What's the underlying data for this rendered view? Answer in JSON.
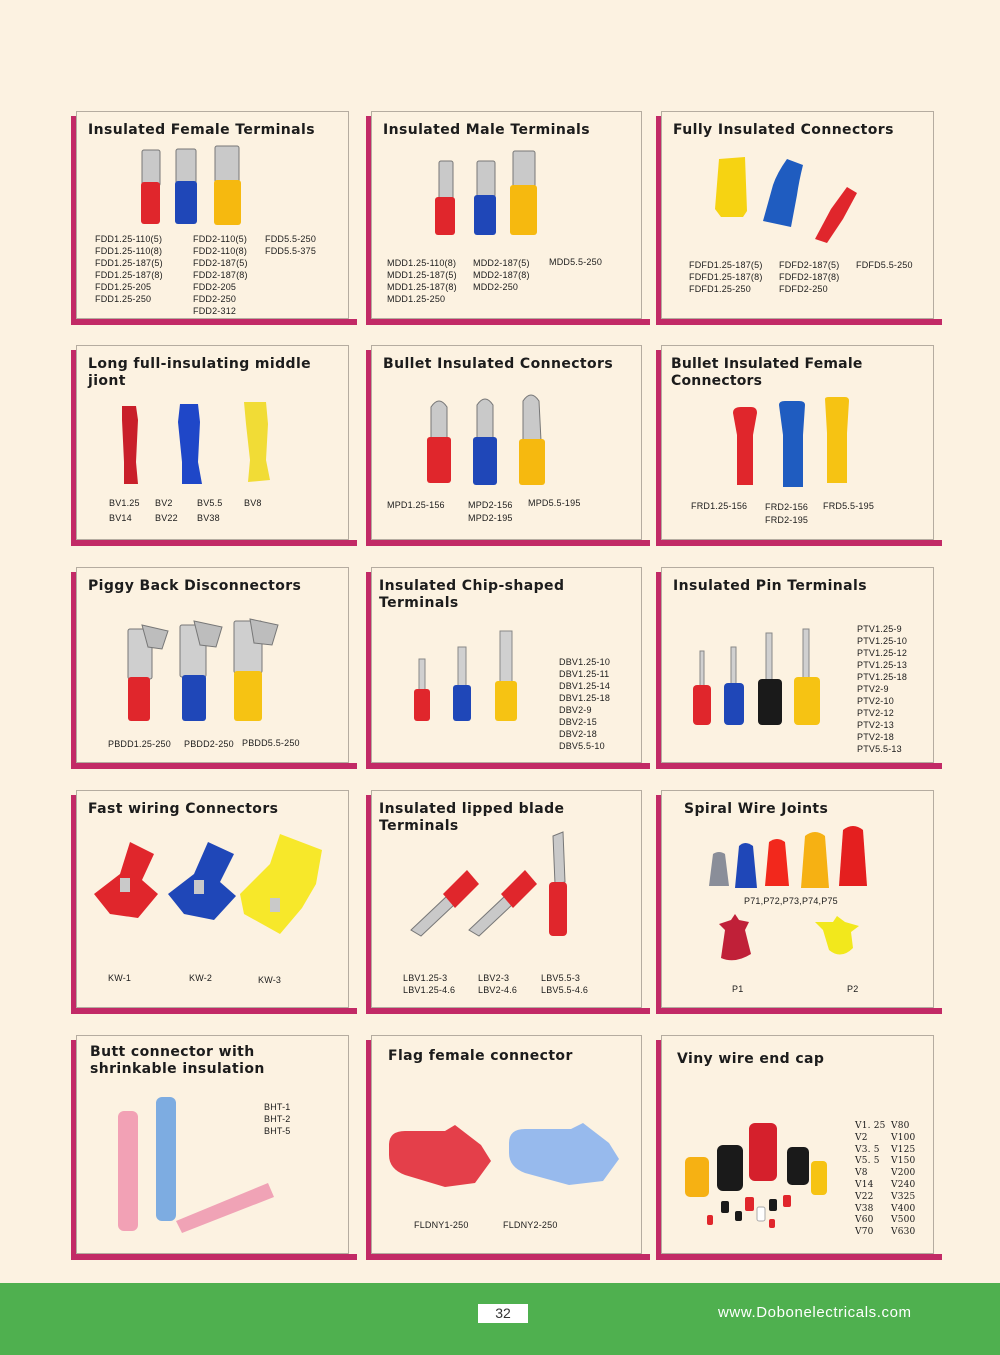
{
  "cards": [
    {
      "title": "Insulated  Female Terminals",
      "cols": [
        "FDD1.25-110(5)\nFDD1.25-110(8)\nFDD1.25-187(5)\nFDD1.25-187(8)\nFDD1.25-205\nFDD1.25-250",
        "FDD2-110(5)\nFDD2-110(8)\nFDD2-187(5)\nFDD2-187(8)\nFDD2-205\nFDD2-250\nFDD2-312",
        "FDD5.5-250\nFDD5.5-375"
      ]
    },
    {
      "title": "Insulated  Male Terminals",
      "cols": [
        "MDD1.25-110(8)\nMDD1.25-187(5)\nMDD1.25-187(8)\nMDD1.25-250",
        "MDD2-187(5)\nMDD2-187(8)\nMDD2-250",
        "MDD5.5-250"
      ]
    },
    {
      "title": "Fully Insulated Connectors",
      "cols": [
        "FDFD1.25-187(5)\nFDFD1.25-187(8)\nFDFD1.25-250",
        "FDFD2-187(5)\nFDFD2-187(8)\nFDFD2-250",
        "FDFD5.5-250"
      ]
    },
    {
      "title": "Long full-insulating middle jiont",
      "cols": [
        "BV1.25\nBV14",
        "BV2\nBV22",
        "BV5.5\nBV38",
        "BV8"
      ]
    },
    {
      "title": "Bullet Insulated Connectors",
      "cols": [
        "MPD1.25-156",
        "MPD2-156\nMPD2-195",
        "MPD5.5-195"
      ]
    },
    {
      "title": "Bullet Insulated Female Connectors",
      "cols": [
        "FRD1.25-156",
        "FRD2-156\nFRD2-195",
        "FRD5.5-195"
      ]
    },
    {
      "title": "Piggy Back Disconnectors",
      "cols": [
        "PBDD1.25-250",
        "PBDD2-250",
        "PBDD5.5-250"
      ]
    },
    {
      "title": "Insulated Chip-shaped Terminals",
      "cols": [
        "DBV1.25-10\nDBV1.25-11\nDBV1.25-14\nDBV1.25-18\nDBV2-9\nDBV2-15\nDBV2-18\nDBV5.5-10"
      ]
    },
    {
      "title": "Insulated Pin Terminals",
      "cols": [
        "PTV1.25-9\nPTV1.25-10\nPTV1.25-12\nPTV1.25-13\nPTV1.25-18\nPTV2-9\nPTV2-10\nPTV2-12\nPTV2-13\nPTV2-18\nPTV5.5-13"
      ]
    },
    {
      "title": "Fast wiring Connectors",
      "cols": [
        "KW-1",
        "KW-2",
        "KW-3"
      ]
    },
    {
      "title": "Insulated lipped blade Terminals",
      "cols": [
        "LBV1.25-3\nLBV1.25-4.6",
        "LBV2-3\nLBV2-4.6",
        "LBV5.5-3\nLBV5.5-4.6"
      ]
    },
    {
      "title": "Spiral Wire Joints",
      "cols": [
        "P71,P72,P73,P74,P75",
        "P1",
        "P2"
      ]
    },
    {
      "title": "Butt connector with\nshrinkable insulation",
      "cols": [
        "BHT-1\nBHT-2\nBHT-5"
      ]
    },
    {
      "title": "Flag female connector",
      "cols": [
        "FLDNY1-250",
        "FLDNY2-250"
      ]
    },
    {
      "title": "Viny wire end cap",
      "cols": [
        "V1. 25\nV2\nV3. 5\nV5. 5\nV8\nV14\nV22\nV38\nV60\nV70",
        "V80\nV100\nV125\nV150\nV200\nV240\nV325\nV400\nV500\nV630"
      ]
    }
  ],
  "footer": {
    "page_number": "32",
    "website": "www.Dobonelectricals.com"
  },
  "colors": {
    "accent": "#c22a66",
    "footer_green": "#4fb04f",
    "background": "#fcf2e1",
    "red": "#e0262c",
    "blue": "#1f47b8",
    "yellow": "#f6c313",
    "black": "#1a1a1a"
  }
}
